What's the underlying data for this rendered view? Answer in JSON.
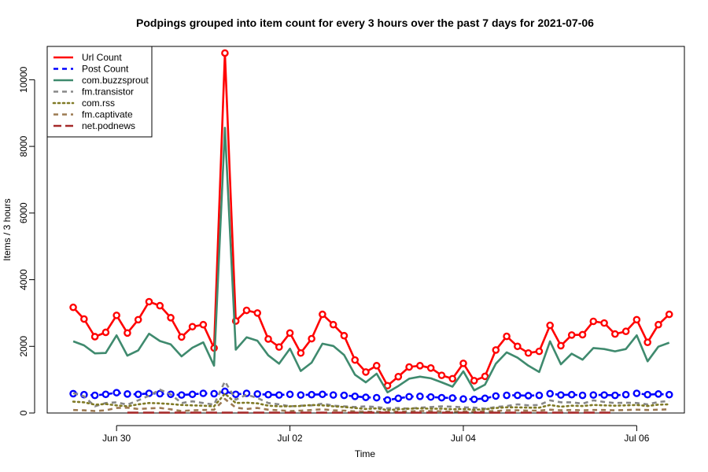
{
  "chart_data": {
    "type": "line",
    "title": "Podpings grouped into item count for every 3 hours  over the past 7 days for 2021-07-06",
    "xlabel": "Time",
    "ylabel": "Items / 3 hours",
    "ylim": [
      0,
      11000
    ],
    "xlim": [
      -2.4,
      56.4
    ],
    "x_ticks": [
      {
        "label": "Jun 30",
        "index": 4
      },
      {
        "label": "Jul 02",
        "index": 20
      },
      {
        "label": "Jul 04",
        "index": 36
      },
      {
        "label": "Jul 06",
        "index": 52
      }
    ],
    "y_ticks": [
      0,
      2000,
      4000,
      6000,
      8000,
      10000
    ],
    "legend_position": "top-left",
    "series": [
      {
        "name": "Url Count",
        "color": "#ff0000",
        "dash": "solid",
        "markers": true,
        "values": [
          3170,
          2820,
          2290,
          2420,
          2930,
          2400,
          2800,
          3340,
          3220,
          2860,
          2280,
          2590,
          2650,
          1950,
          10800,
          2760,
          3080,
          3000,
          2220,
          1980,
          2400,
          1800,
          2230,
          2960,
          2650,
          2320,
          1590,
          1230,
          1420,
          820,
          1090,
          1380,
          1420,
          1350,
          1130,
          1030,
          1490,
          970,
          1100,
          1890,
          2300,
          2000,
          1800,
          1850,
          2630,
          2020,
          2340,
          2350,
          2750,
          2700,
          2370,
          2450,
          2800,
          2120,
          2650,
          2960
        ]
      },
      {
        "name": "Post Count",
        "color": "#0000ff",
        "dash": "dashed",
        "markers": true,
        "values": [
          580,
          550,
          530,
          560,
          610,
          570,
          560,
          590,
          580,
          560,
          540,
          560,
          590,
          580,
          650,
          560,
          590,
          570,
          550,
          540,
          560,
          540,
          550,
          560,
          540,
          530,
          500,
          470,
          460,
          390,
          440,
          490,
          500,
          480,
          460,
          450,
          420,
          410,
          440,
          510,
          530,
          530,
          520,
          530,
          580,
          540,
          550,
          530,
          540,
          540,
          530,
          550,
          590,
          550,
          570,
          550
        ]
      },
      {
        "name": "com.buzzsprout",
        "color": "#3f8a6e",
        "dash": "solid",
        "markers": false,
        "values": [
          2150,
          2030,
          1790,
          1800,
          2330,
          1720,
          1880,
          2380,
          2160,
          2060,
          1700,
          1960,
          2120,
          1420,
          8560,
          1900,
          2270,
          2170,
          1730,
          1480,
          1930,
          1260,
          1510,
          2080,
          2010,
          1740,
          1150,
          920,
          1180,
          620,
          810,
          1030,
          1090,
          1040,
          920,
          790,
          1250,
          680,
          850,
          1480,
          1820,
          1660,
          1420,
          1230,
          2150,
          1460,
          1780,
          1600,
          1950,
          1920,
          1850,
          1920,
          2330,
          1550,
          1990,
          2110
        ]
      },
      {
        "name": "fm.transistor",
        "color": "#888888",
        "dash": "dashed",
        "markers": false,
        "values": [
          600,
          500,
          200,
          300,
          320,
          250,
          380,
          520,
          700,
          560,
          300,
          350,
          300,
          250,
          950,
          400,
          550,
          450,
          300,
          260,
          200,
          220,
          230,
          280,
          220,
          200,
          180,
          200,
          180,
          140,
          150,
          130,
          160,
          180,
          200,
          190,
          170,
          160,
          130,
          180,
          210,
          260,
          230,
          240,
          380,
          320,
          320,
          280,
          380,
          330,
          300,
          310,
          300,
          260,
          330,
          360
        ]
      },
      {
        "name": "com.rss",
        "color": "#807a26",
        "dash": "dotted",
        "markers": false,
        "values": [
          340,
          320,
          250,
          270,
          230,
          200,
          260,
          300,
          290,
          270,
          240,
          230,
          220,
          200,
          580,
          300,
          310,
          290,
          220,
          200,
          200,
          210,
          240,
          230,
          200,
          180,
          150,
          120,
          140,
          90,
          110,
          130,
          140,
          130,
          130,
          110,
          120,
          100,
          110,
          150,
          170,
          170,
          160,
          160,
          240,
          190,
          220,
          210,
          240,
          230,
          220,
          230,
          240,
          210,
          250,
          260
        ]
      },
      {
        "name": "fm.captivate",
        "color": "#9c7a52",
        "dash": "dashed",
        "markers": false,
        "values": [
          90,
          80,
          60,
          80,
          150,
          160,
          120,
          140,
          150,
          110,
          60,
          80,
          90,
          100,
          420,
          160,
          120,
          150,
          100,
          80,
          60,
          70,
          90,
          110,
          80,
          70,
          50,
          40,
          40,
          30,
          40,
          50,
          60,
          60,
          50,
          40,
          50,
          40,
          50,
          60,
          80,
          80,
          70,
          70,
          100,
          80,
          90,
          80,
          90,
          90,
          80,
          90,
          100,
          90,
          100,
          110
        ]
      },
      {
        "name": "net.podnews",
        "color": "#a52a2a",
        "dash": "longdash",
        "markers": false,
        "values": [
          null,
          null,
          null,
          null,
          null,
          10,
          10,
          10,
          10,
          10,
          10,
          10,
          10,
          10,
          10,
          10,
          10,
          10,
          10,
          10,
          10,
          10,
          10,
          10,
          10,
          10,
          10,
          10,
          10,
          10,
          10,
          10,
          10,
          10,
          10,
          10,
          10,
          10,
          10,
          10,
          10,
          10,
          10,
          10,
          10,
          10,
          10,
          10,
          10,
          10,
          10,
          null,
          null,
          null,
          null,
          null
        ]
      }
    ]
  }
}
